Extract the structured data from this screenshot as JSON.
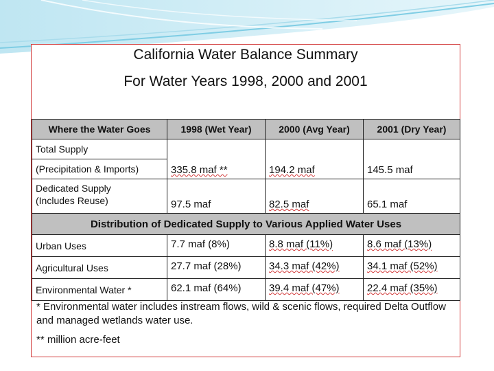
{
  "title_line1": "California Water Balance Summary",
  "title_line2": "For Water Years 1998, 2000 and 2001",
  "header": {
    "col0": "Where the Water Goes",
    "col1": "1998 (Wet Year)",
    "col2": "2000 (Avg Year)",
    "col3": "2001 (Dry Year)"
  },
  "total_supply": {
    "label_line1": "Total Supply",
    "label_line2": "(Precipitation & Imports)",
    "v1998": "335.8 maf **",
    "v2000": "194.2 maf",
    "v2001": "145.5 maf"
  },
  "dedicated_supply": {
    "label_line1": "Dedicated Supply",
    "label_line2": "(Includes Reuse)",
    "v1998": "97.5 maf",
    "v2000": "82.5 maf",
    "v2001": "65.1 maf"
  },
  "section_heading": "Distribution of Dedicated Supply to Various Applied Water Uses",
  "uses": [
    {
      "label": "Urban Uses",
      "v1998": "7.7 maf (8%)",
      "v2000": "8.8 maf (11%)",
      "v2001": "8.6 maf (13%)"
    },
    {
      "label": "Agricultural Uses",
      "v1998": "27.7 maf (28%)",
      "v2000": "34.3 maf (42%)",
      "v2001": "34.1 maf (52%)"
    },
    {
      "label": "Environmental Water *",
      "v1998": "62.1 maf (64%)",
      "v2000": "39.4 maf (47%)",
      "v2001": "22.4 maf (35%)"
    }
  ],
  "notes": {
    "footnote1": "* Environmental water includes instream flows, wild & scenic flows, required Delta Outflow and managed wetlands water use.",
    "footnote2": "** million acre-feet"
  }
}
